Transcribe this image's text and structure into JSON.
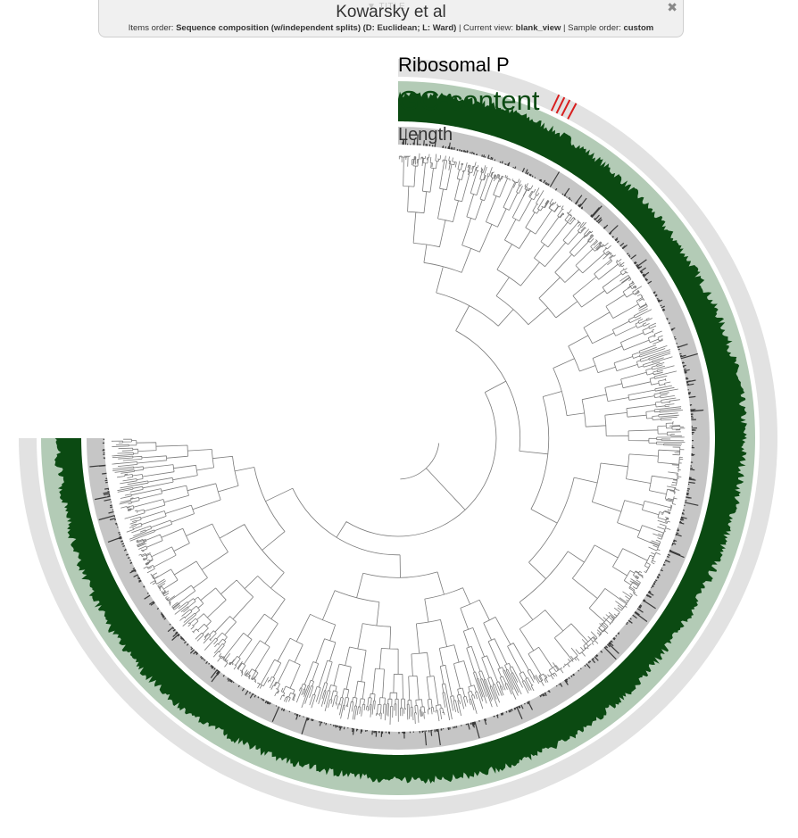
{
  "panel": {
    "toggle_label": "▼ TITLE",
    "title": "Kowarsky et al",
    "subtitle_parts": [
      {
        "text": "Items order: ",
        "bold": false
      },
      {
        "text": "Sequence composition (w/independent splits) (D: Euclidean; L: Ward)",
        "bold": true
      },
      {
        "text": " | Current view: ",
        "bold": false
      },
      {
        "text": "blank_view",
        "bold": true
      },
      {
        "text": " | Sample order: ",
        "bold": false
      },
      {
        "text": "custom",
        "bold": true
      }
    ],
    "close_icon": "close-icon"
  },
  "layers": [
    {
      "name": "Ribosomal P",
      "color": "#000000",
      "background": "#e2e2e2"
    },
    {
      "name": "GC-content",
      "color": "#0b4a12",
      "background": "#b3cbb6"
    },
    {
      "name": "Length",
      "color": "#444444",
      "background": "#c6c6c6"
    }
  ],
  "ribosomal_hits_angles_deg": [
    -62.0,
    -63.1,
    -64.0,
    -64.9
  ],
  "ribosomal_hit_color": "#d81e1e",
  "tree_color": "#7a7a7a"
}
